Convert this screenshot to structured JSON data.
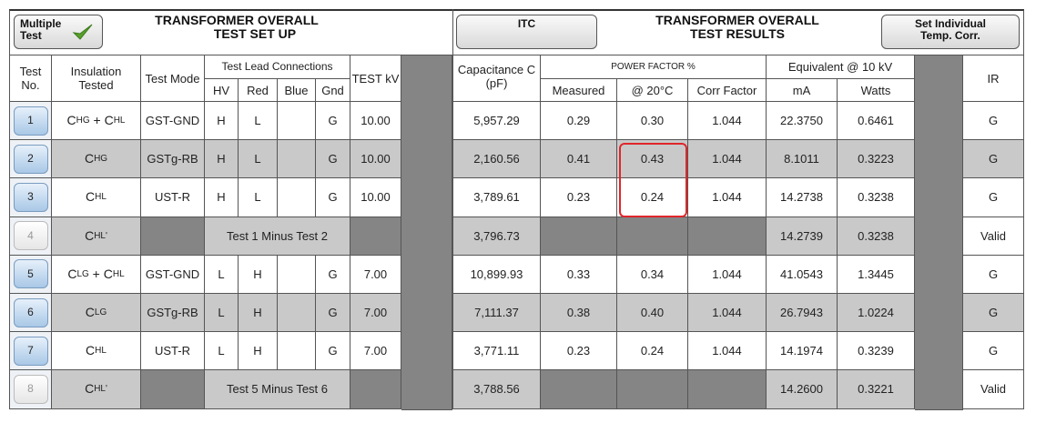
{
  "header": {
    "multiple_test": "Multiple Test",
    "left_title": [
      "TRANSFORMER OVERALL",
      "TEST SET UP"
    ],
    "itc": "ITC",
    "right_title": [
      "TRANSFORMER OVERALL",
      "TEST RESULTS"
    ],
    "set_individual": "Set Individual Temp. Corr."
  },
  "columns": {
    "test_no": "Test No.",
    "insulation": "Insulation Tested",
    "test_mode": "Test Mode",
    "test_lead": "Test Lead Connections",
    "hv": "HV",
    "red": "Red",
    "blue": "Blue",
    "gnd": "Gnd",
    "test_kv": "TEST kV",
    "capacitance": "Capacitance C (pF)",
    "power_factor": "POWER FACTOR %",
    "measured": "Measured",
    "at20": "@ 20°C",
    "corr": "Corr Factor",
    "equivalent": "Equivalent @ 10 kV",
    "ma": "mA",
    "watts": "Watts",
    "ir": "IR"
  },
  "rows": [
    {
      "no": "1",
      "insulation": [
        {
          "c": "C",
          "sub": "HG"
        },
        " + ",
        {
          "c": "C",
          "sub": "HL"
        }
      ],
      "mode": "GST-GND",
      "hv": "H",
      "red": "L",
      "gnd": "G",
      "kv": "10.00",
      "cap": "5,957.29",
      "measured": "0.29",
      "at20": "0.30",
      "corr": "1.044",
      "ma": "22.3750",
      "watts": "0.6461",
      "ir": "G"
    },
    {
      "no": "2",
      "insulation": [
        {
          "c": "C",
          "sub": "HG"
        }
      ],
      "mode": "GSTg-RB",
      "hv": "H",
      "red": "L",
      "gnd": "G",
      "kv": "10.00",
      "cap": "2,160.56",
      "measured": "0.41",
      "at20": "0.43",
      "corr": "1.044",
      "ma": "8.1011",
      "watts": "0.3223",
      "ir": "G"
    },
    {
      "no": "3",
      "insulation": [
        {
          "c": "C",
          "sub": "HL"
        }
      ],
      "mode": "UST-R",
      "hv": "H",
      "red": "L",
      "gnd": "G",
      "kv": "10.00",
      "cap": "3,789.61",
      "measured": "0.23",
      "at20": "0.24",
      "corr": "1.044",
      "ma": "14.2738",
      "watts": "0.3238",
      "ir": "G"
    },
    {
      "no": "4",
      "insulation": [
        {
          "c": "C",
          "sub": "HL'"
        }
      ],
      "minus": "Test 1 Minus Test 2",
      "cap": "3,796.73",
      "ma": "14.2739",
      "watts": "0.3238",
      "ir": "Valid"
    },
    {
      "no": "5",
      "insulation": [
        {
          "c": "C",
          "sub": "LG"
        },
        " + ",
        {
          "c": "C",
          "sub": "HL"
        }
      ],
      "mode": "GST-GND",
      "hv": "L",
      "red": "H",
      "gnd": "G",
      "kv": "7.00",
      "cap": "10,899.93",
      "measured": "0.33",
      "at20": "0.34",
      "corr": "1.044",
      "ma": "41.0543",
      "watts": "1.3445",
      "ir": "G"
    },
    {
      "no": "6",
      "insulation": [
        {
          "c": "C",
          "sub": "LG"
        }
      ],
      "mode": "GSTg-RB",
      "hv": "L",
      "red": "H",
      "gnd": "G",
      "kv": "7.00",
      "cap": "7,111.37",
      "measured": "0.38",
      "at20": "0.40",
      "corr": "1.044",
      "ma": "26.7943",
      "watts": "1.0224",
      "ir": "G"
    },
    {
      "no": "7",
      "insulation": [
        {
          "c": "C",
          "sub": "HL"
        }
      ],
      "mode": "UST-R",
      "hv": "L",
      "red": "H",
      "gnd": "G",
      "kv": "7.00",
      "cap": "3,771.11",
      "measured": "0.23",
      "at20": "0.24",
      "corr": "1.044",
      "ma": "14.1974",
      "watts": "0.3239",
      "ir": "G"
    },
    {
      "no": "8",
      "insulation": [
        {
          "c": "C",
          "sub": "HL'"
        }
      ],
      "minus": "Test 5 Minus Test 6",
      "cap": "3,788.56",
      "ma": "14.2600",
      "watts": "0.3221",
      "ir": "Valid"
    }
  ]
}
